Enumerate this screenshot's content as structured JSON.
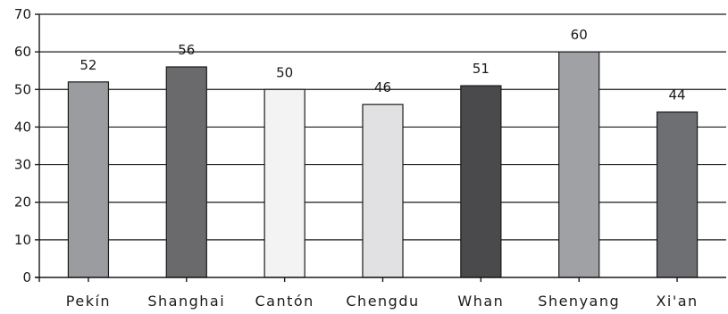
{
  "chart_data": {
    "type": "bar",
    "categories": [
      "Pekín",
      "Shanghai",
      "Cantón",
      "Chengdu",
      "Whan",
      "Shenyang",
      "Xi'an"
    ],
    "values": [
      52,
      56,
      50,
      46,
      51,
      60,
      44
    ],
    "data_labels": [
      "52",
      "56",
      "50",
      "46",
      "51",
      "60",
      "44"
    ],
    "bar_colors": [
      "#9b9c9f",
      "#6a6a6c",
      "#f3f3f3",
      "#e1e1e3",
      "#4a4a4c",
      "#a0a1a4",
      "#6e6f72"
    ],
    "y_ticks": [
      0,
      10,
      20,
      30,
      40,
      50,
      60,
      70
    ],
    "y_tick_labels": [
      "0",
      "10",
      "20",
      "30",
      "40",
      "50",
      "60",
      "70"
    ],
    "ylim": [
      0,
      70
    ],
    "grid": true,
    "legend": "none"
  }
}
